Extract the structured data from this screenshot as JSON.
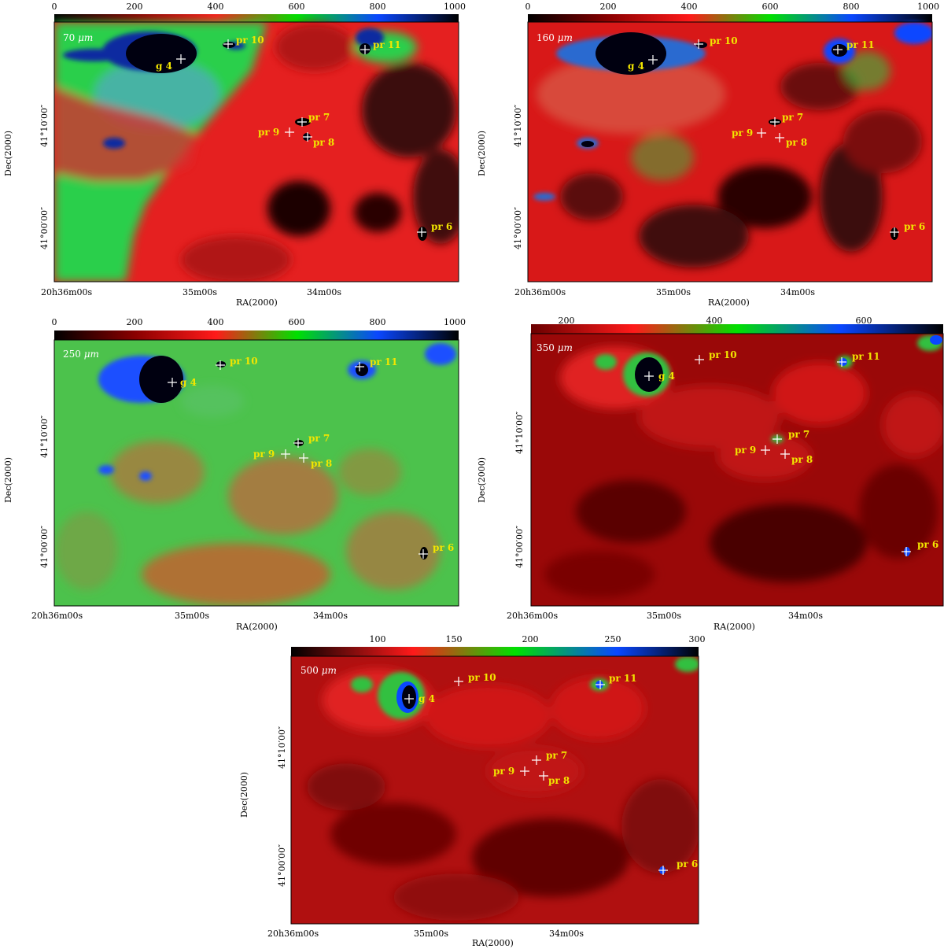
{
  "common": {
    "ra_label": "RA(2000)",
    "dec_label": "Dec(2000)",
    "ra_ticks": [
      "20h36m00s",
      "35m00s",
      "34m00s"
    ],
    "dec_ticks": [
      "41°10′00″",
      "41°00′00″"
    ]
  },
  "panels": [
    {
      "id": "p70",
      "wavelength": "70",
      "unit": "μm",
      "colorbar_ticks": [
        "0",
        "200",
        "400",
        "600",
        "800",
        "1000"
      ],
      "sources": [
        {
          "label": "g 4"
        },
        {
          "label": "pr 10"
        },
        {
          "label": "pr 11"
        },
        {
          "label": "pr 7"
        },
        {
          "label": "pr 9"
        },
        {
          "label": "pr 8"
        },
        {
          "label": "pr 6"
        }
      ]
    },
    {
      "id": "p160",
      "wavelength": "160",
      "unit": "μm",
      "colorbar_ticks": [
        "0",
        "200",
        "400",
        "600",
        "800",
        "1000"
      ],
      "sources": [
        {
          "label": "g 4"
        },
        {
          "label": "pr 10"
        },
        {
          "label": "pr 11"
        },
        {
          "label": "pr 7"
        },
        {
          "label": "pr 9"
        },
        {
          "label": "pr 8"
        },
        {
          "label": "pr 6"
        }
      ]
    },
    {
      "id": "p250",
      "wavelength": "250",
      "unit": "μm",
      "colorbar_ticks": [
        "0",
        "200",
        "400",
        "600",
        "800",
        "1000"
      ],
      "sources": [
        {
          "label": "g 4"
        },
        {
          "label": "pr 10"
        },
        {
          "label": "pr 11"
        },
        {
          "label": "pr 7"
        },
        {
          "label": "pr 9"
        },
        {
          "label": "pr 8"
        },
        {
          "label": "pr 6"
        }
      ]
    },
    {
      "id": "p350",
      "wavelength": "350",
      "unit": "μm",
      "colorbar_ticks": [
        "200",
        "400",
        "600"
      ],
      "sources": [
        {
          "label": "g 4"
        },
        {
          "label": "pr 10"
        },
        {
          "label": "pr 11"
        },
        {
          "label": "pr 7"
        },
        {
          "label": "pr 9"
        },
        {
          "label": "pr 8"
        },
        {
          "label": "pr 6"
        }
      ]
    },
    {
      "id": "p500",
      "wavelength": "500",
      "unit": "μm",
      "colorbar_ticks": [
        "100",
        "150",
        "200",
        "250",
        "300"
      ],
      "sources": [
        {
          "label": "g 4"
        },
        {
          "label": "pr 10"
        },
        {
          "label": "pr 11"
        },
        {
          "label": "pr 7"
        },
        {
          "label": "pr 9"
        },
        {
          "label": "pr 8"
        },
        {
          "label": "pr 6"
        }
      ]
    }
  ],
  "colors": {
    "label_yellow": "#f2e600",
    "colormap": [
      "#000000",
      "#8a0000",
      "#ff1a1a",
      "#00e000",
      "#0a47ff",
      "#000000"
    ]
  }
}
